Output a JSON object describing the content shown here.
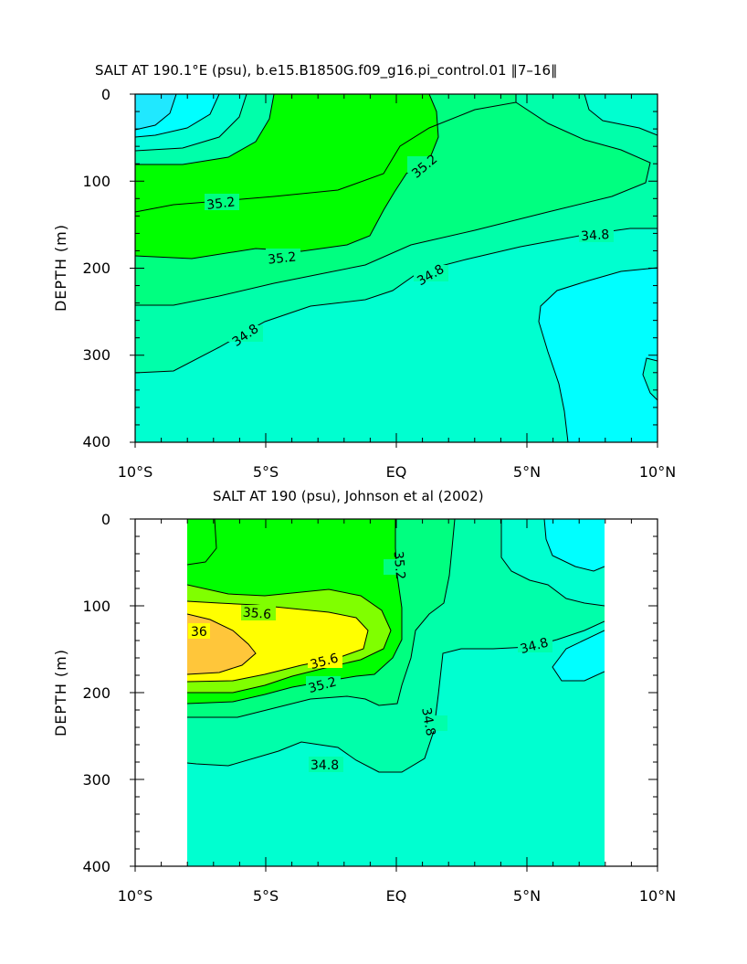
{
  "chart_data": [
    {
      "type": "contour",
      "title": "SALT AT 190.1°E (psu), b.e15.B1850G.f09_g16.pi_control.01 ∥7–16∥",
      "xlabel": "",
      "ylabel": "DEPTH (m)",
      "xlim": [
        -10,
        10
      ],
      "ylim": [
        400,
        0
      ],
      "xticks": [
        "10°S",
        "5°S",
        "EQ",
        "5°N",
        "10°N"
      ],
      "yticks": [
        "0",
        "100",
        "200",
        "300",
        "400"
      ],
      "contour_labels": [
        "35.2",
        "35.2",
        "35.2",
        "34.8",
        "34.8",
        "34.8"
      ],
      "palette": {
        "34.6": "#00ffff",
        "34.8": "#00ffd0",
        "35.0": "#00ffaa",
        "35.2": "#00ff80",
        "35.4": "#00ff00"
      }
    },
    {
      "type": "contour",
      "title": "SALT AT 190 (psu), Johnson et al (2002)",
      "xlabel": "",
      "ylabel": "DEPTH (m)",
      "xlim": [
        -10,
        10
      ],
      "ylim": [
        400,
        0
      ],
      "xticks": [
        "10°S",
        "5°S",
        "EQ",
        "5°N",
        "10°N"
      ],
      "yticks": [
        "0",
        "100",
        "200",
        "300",
        "400"
      ],
      "data_extent_lon": [
        -8,
        8
      ],
      "contour_labels": [
        "35.6",
        "36",
        "35.6",
        "35.2",
        "35.2",
        "34.8",
        "34.8",
        "34.8"
      ],
      "palette": {
        "34.6": "#00ffff",
        "34.8": "#00ffd0",
        "35.0": "#00ffaa",
        "35.2": "#00ff80",
        "35.4": "#00ff00",
        "35.6": "#80ff00",
        "35.8": "#ffff00",
        "36.0": "#ffd020"
      }
    }
  ]
}
